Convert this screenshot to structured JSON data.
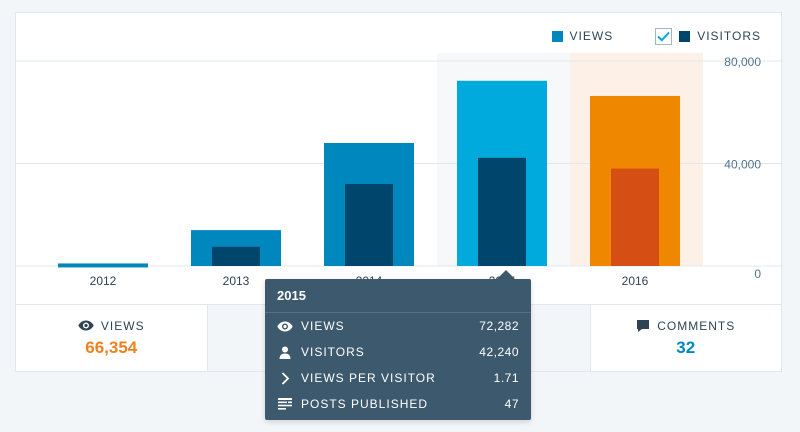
{
  "colors": {
    "views": "#0087be",
    "visitors": "#00456c",
    "views_hover": "#00aadc",
    "views_today": "#f08700",
    "visitors_today": "#d54e14",
    "today_band": "#fdf1e7",
    "hover_band": "#f6f8fa",
    "grid": "#e1e8ed",
    "axis_text": "#4f748e",
    "orange_value": "#f0821e",
    "blue_value": "#0087be"
  },
  "legend": {
    "views_label": "VIEWS",
    "visitors_label": "VISITORS",
    "visitors_checked": true
  },
  "chart_data": {
    "type": "bar",
    "categories": [
      "2012",
      "2013",
      "2014",
      "2015",
      "2016"
    ],
    "series": [
      {
        "name": "VIEWS",
        "values": [
          1000,
          14000,
          48000,
          72282,
          66354
        ]
      },
      {
        "name": "VISITORS",
        "values": [
          0,
          7500,
          32000,
          42240,
          38000
        ]
      }
    ],
    "y_ticks": [
      "80,000",
      "40,000",
      "0"
    ],
    "y_tick_values": [
      80000,
      40000,
      0
    ],
    "ylim": [
      0,
      80000
    ],
    "grid": true,
    "hover_index": 3,
    "today_index": 4
  },
  "stats": [
    {
      "label": "VIEWS",
      "value": "66,354",
      "icon": "eye-icon"
    },
    {
      "label": "",
      "value": "",
      "icon": ""
    },
    {
      "label": "",
      "value": "",
      "icon": ""
    },
    {
      "label": "COMMENTS",
      "value": "32",
      "icon": "comment-icon"
    }
  ],
  "tooltip": {
    "title": "2015",
    "rows": [
      {
        "label": "VIEWS",
        "value": "72,282",
        "icon": "eye-icon"
      },
      {
        "label": "VISITORS",
        "value": "42,240",
        "icon": "person-icon"
      },
      {
        "label": "VIEWS PER VISITOR",
        "value": "1.71",
        "icon": "chevron-right-icon"
      },
      {
        "label": "POSTS PUBLISHED",
        "value": "47",
        "icon": "text-lines-icon"
      }
    ]
  }
}
